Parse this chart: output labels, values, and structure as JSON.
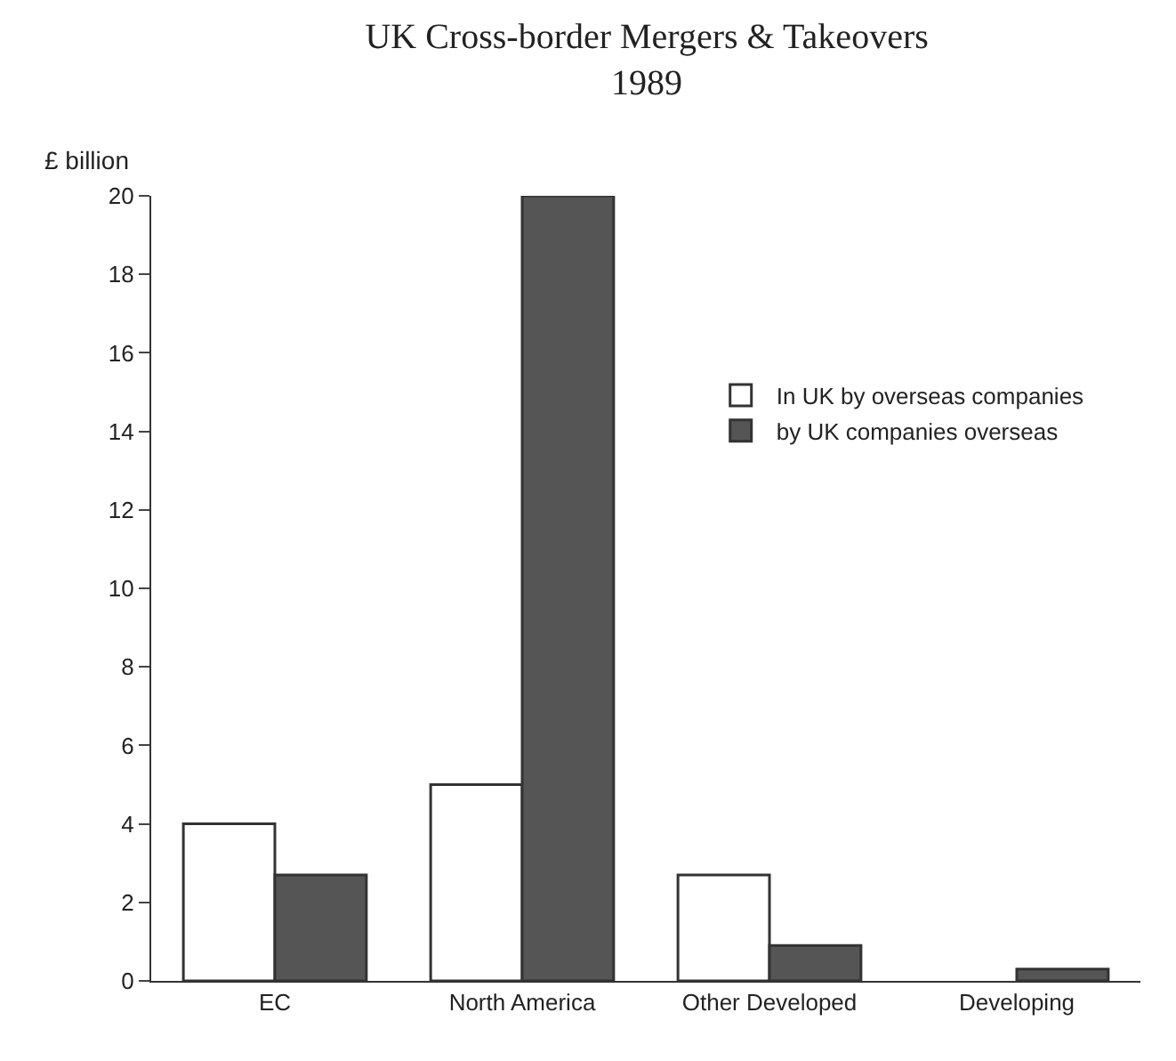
{
  "chart_data": {
    "type": "bar",
    "title": "UK Cross-border Mergers & Takeovers",
    "subtitle": "1989",
    "ylabel": "£ billion",
    "categories": [
      "EC",
      "North America",
      "Other Developed",
      "Developing"
    ],
    "series": [
      {
        "name": "In UK by overseas companies",
        "color": "#ffffff",
        "values": [
          4.0,
          5.0,
          2.7,
          null
        ]
      },
      {
        "name": "by UK companies overseas",
        "color": "#555555",
        "values": [
          2.7,
          20.0,
          0.9,
          0.3
        ]
      }
    ],
    "ylim": [
      0,
      20
    ],
    "yticks": [
      0,
      2,
      4,
      6,
      8,
      10,
      12,
      14,
      16,
      18,
      20
    ],
    "legend": "right"
  }
}
